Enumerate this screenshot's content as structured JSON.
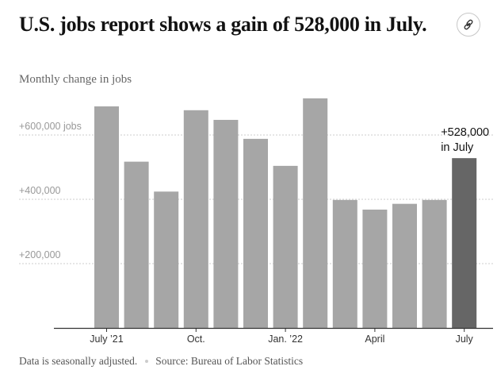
{
  "headline": "U.S. jobs report shows a gain of 528,000 in July.",
  "link_button": {
    "icon": "link-icon"
  },
  "footer": {
    "note": "Data is seasonally adjusted.",
    "source": "Source: Bureau of Labor Statistics"
  },
  "colors": {
    "bar": "#a6a6a6",
    "highlight_bar": "#666666",
    "gridline": "#cccccc",
    "axis": "#333333"
  },
  "chart_data": {
    "type": "bar",
    "title": "",
    "ylabel": "Monthly change in jobs",
    "grid": true,
    "ylim": [
      0,
      730000
    ],
    "y_ticks": [
      {
        "value": 200000,
        "label": "+200,000"
      },
      {
        "value": 400000,
        "label": "+400,000"
      },
      {
        "value": 600000,
        "label": "+600,000 jobs"
      }
    ],
    "x_ticks": [
      {
        "index": 0,
        "label": "July ’21"
      },
      {
        "index": 3,
        "label": "Oct."
      },
      {
        "index": 6,
        "label": "Jan. ’22"
      },
      {
        "index": 9,
        "label": "April"
      },
      {
        "index": 12,
        "label": "July"
      }
    ],
    "categories": [
      "Jul 2021",
      "Aug 2021",
      "Sep 2021",
      "Oct 2021",
      "Nov 2021",
      "Dec 2021",
      "Jan 2022",
      "Feb 2022",
      "Mar 2022",
      "Apr 2022",
      "May 2022",
      "Jun 2022",
      "Jul 2022"
    ],
    "values": [
      689000,
      517000,
      424000,
      677000,
      647000,
      588000,
      504000,
      714000,
      398000,
      368000,
      386000,
      398000,
      528000
    ],
    "highlight_index": 12,
    "annotation": [
      "+528,000",
      "in July"
    ]
  }
}
